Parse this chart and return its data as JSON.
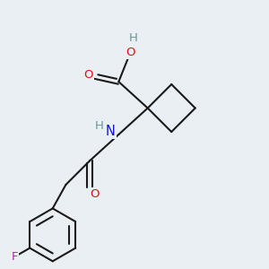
{
  "bg_color": "#eaeff3",
  "bond_color": "#1a1a1a",
  "bond_width": 1.5,
  "atom_colors": {
    "C": "#1a1a1a",
    "H": "#6a9898",
    "N": "#1010e0",
    "O": "#e01010",
    "F": "#c020c0"
  },
  "font_size": 9.5
}
